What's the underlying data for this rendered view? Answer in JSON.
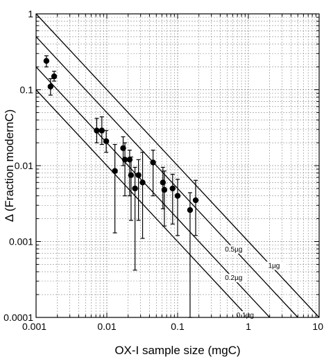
{
  "chart_data": {
    "type": "scatter",
    "xlabel": "OX-I sample size (mgC)",
    "ylabel": "Δ (Fraction modernC)",
    "x_scale": "log",
    "y_scale": "log",
    "xlim": [
      0.001,
      10
    ],
    "ylim": [
      0.0001,
      1
    ],
    "grid": true,
    "x_ticks": [
      "0.001",
      "0.01",
      "0.1",
      "1",
      "10"
    ],
    "y_ticks": [
      "1",
      "0.1",
      "0.01",
      "0.001",
      "0.0001"
    ],
    "points": [
      {
        "x": 0.0014,
        "y": 0.24,
        "lo": 0.2,
        "hi": 0.28
      },
      {
        "x": 0.0016,
        "y": 0.11,
        "lo": 0.085,
        "hi": 0.14
      },
      {
        "x": 0.0018,
        "y": 0.15,
        "lo": 0.13,
        "hi": 0.175
      },
      {
        "x": 0.0072,
        "y": 0.029,
        "lo": 0.02,
        "hi": 0.042
      },
      {
        "x": 0.0085,
        "y": 0.029,
        "lo": 0.019,
        "hi": 0.044
      },
      {
        "x": 0.0098,
        "y": 0.021,
        "lo": 0.015,
        "hi": 0.029
      },
      {
        "x": 0.013,
        "y": 0.0085,
        "lo": 0.0013,
        "hi": 0.019
      },
      {
        "x": 0.017,
        "y": 0.017,
        "lo": 0.01,
        "hi": 0.024
      },
      {
        "x": 0.018,
        "y": 0.012,
        "lo": 0.004,
        "hi": 0.02
      },
      {
        "x": 0.021,
        "y": 0.012,
        "lo": 0.004,
        "hi": 0.016
      },
      {
        "x": 0.022,
        "y": 0.0075,
        "lo": 0.0019,
        "hi": 0.013
      },
      {
        "x": 0.025,
        "y": 0.005,
        "lo": 0.00042,
        "hi": 0.0095
      },
      {
        "x": 0.028,
        "y": 0.0075,
        "lo": 0.0019,
        "hi": 0.012
      },
      {
        "x": 0.032,
        "y": 0.006,
        "lo": 0.0011,
        "hi": 0.015
      },
      {
        "x": 0.045,
        "y": 0.011,
        "lo": 0.004,
        "hi": 0.016
      },
      {
        "x": 0.062,
        "y": 0.006,
        "lo": 0.0027,
        "hi": 0.0095
      },
      {
        "x": 0.065,
        "y": 0.0048,
        "lo": 0.0016,
        "hi": 0.0085
      },
      {
        "x": 0.085,
        "y": 0.005,
        "lo": 0.0017,
        "hi": 0.0077
      },
      {
        "x": 0.1,
        "y": 0.004,
        "lo": 0.0012,
        "hi": 0.0066
      },
      {
        "x": 0.15,
        "y": 0.0026,
        "lo": 0.0001,
        "hi": 0.0044
      },
      {
        "x": 0.18,
        "y": 0.0035,
        "lo": 0.0012,
        "hi": 0.0064
      }
    ],
    "lines": [
      {
        "label": "0.1µg",
        "contaminant_ug": 0.1,
        "label_x": 0.9,
        "label_y": 0.0001
      },
      {
        "label": "0.2µg",
        "contaminant_ug": 0.2,
        "label_x": 0.62,
        "label_y": 0.00031
      },
      {
        "label": "0.5µg",
        "contaminant_ug": 0.5,
        "label_x": 0.62,
        "label_y": 0.00074
      },
      {
        "label": "1µg",
        "contaminant_ug": 1,
        "label_x": 2.3,
        "label_y": 0.00045
      }
    ]
  }
}
